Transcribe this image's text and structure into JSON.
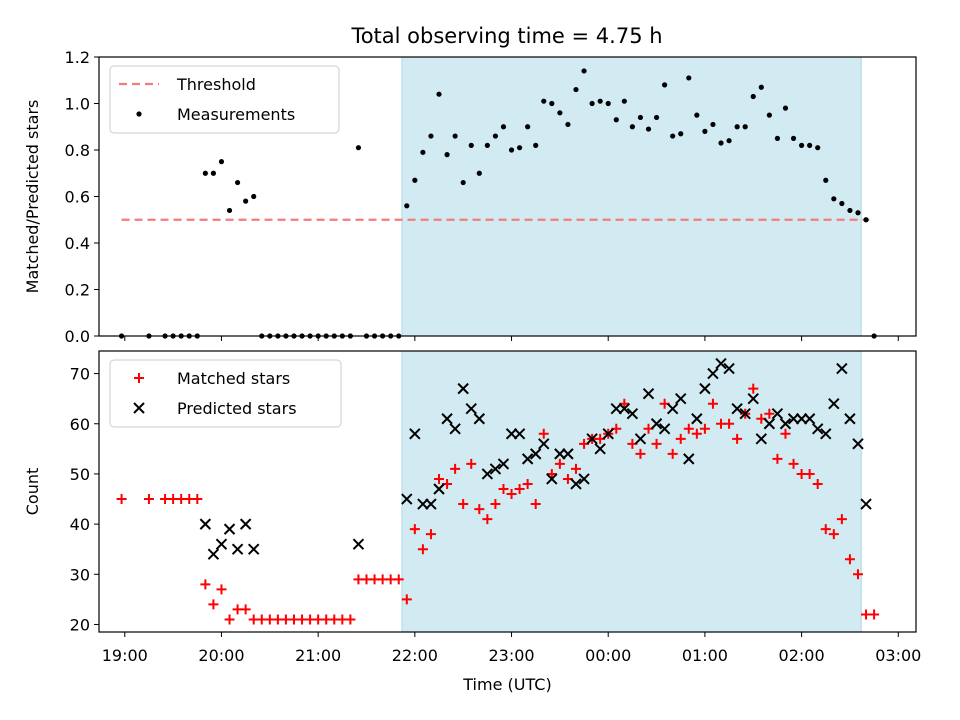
{
  "figure_title": "Total observing time = 4.75 h",
  "colors": {
    "threshold": "#f47c7c",
    "measurement": "#000000",
    "matched": "#ff0000",
    "predicted": "#000000",
    "shade": "#add8e6"
  },
  "chart_data": [
    {
      "type": "scatter",
      "panel": "top",
      "ylabel": "Matched/Predicted stars",
      "ylim": [
        0,
        1.2
      ],
      "yticks": [
        0.0,
        0.2,
        0.4,
        0.6,
        0.8,
        1.0,
        1.2
      ],
      "ytick_labels": [
        "0.0",
        "0.2",
        "0.4",
        "0.6",
        "0.8",
        "1.0",
        "1.2"
      ],
      "shade_range": [
        "21:52",
        "02:37"
      ],
      "legend": {
        "placement": "top-left",
        "entries": [
          "Threshold",
          "Measurements"
        ]
      },
      "series": [
        {
          "name": "Threshold",
          "kind": "dashed-line",
          "x": [
            "18:58",
            "02:42"
          ],
          "y": [
            0.5,
            0.5
          ]
        },
        {
          "name": "Measurements",
          "kind": "dots",
          "points": [
            [
              "18:58",
              0.0
            ],
            [
              "19:15",
              0.0
            ],
            [
              "19:25",
              0.0
            ],
            [
              "19:30",
              0.0
            ],
            [
              "19:35",
              0.0
            ],
            [
              "19:40",
              0.0
            ],
            [
              "19:45",
              0.0
            ],
            [
              "19:50",
              0.7
            ],
            [
              "19:55",
              0.7
            ],
            [
              "20:00",
              0.75
            ],
            [
              "20:05",
              0.54
            ],
            [
              "20:10",
              0.66
            ],
            [
              "20:15",
              0.58
            ],
            [
              "20:20",
              0.6
            ],
            [
              "20:25",
              0.0
            ],
            [
              "20:30",
              0.0
            ],
            [
              "20:35",
              0.0
            ],
            [
              "20:40",
              0.0
            ],
            [
              "20:45",
              0.0
            ],
            [
              "20:50",
              0.0
            ],
            [
              "20:55",
              0.0
            ],
            [
              "21:00",
              0.0
            ],
            [
              "21:05",
              0.0
            ],
            [
              "21:10",
              0.0
            ],
            [
              "21:15",
              0.0
            ],
            [
              "21:20",
              0.0
            ],
            [
              "21:25",
              0.81
            ],
            [
              "21:30",
              0.0
            ],
            [
              "21:35",
              0.0
            ],
            [
              "21:40",
              0.0
            ],
            [
              "21:45",
              0.0
            ],
            [
              "21:50",
              0.0
            ],
            [
              "21:55",
              0.56
            ],
            [
              "22:00",
              0.67
            ],
            [
              "22:05",
              0.79
            ],
            [
              "22:10",
              0.86
            ],
            [
              "22:15",
              1.04
            ],
            [
              "22:20",
              0.78
            ],
            [
              "22:25",
              0.86
            ],
            [
              "22:30",
              0.66
            ],
            [
              "22:35",
              0.82
            ],
            [
              "22:40",
              0.7
            ],
            [
              "22:45",
              0.82
            ],
            [
              "22:50",
              0.86
            ],
            [
              "22:55",
              0.9
            ],
            [
              "23:00",
              0.8
            ],
            [
              "23:05",
              0.81
            ],
            [
              "23:10",
              0.9
            ],
            [
              "23:15",
              0.82
            ],
            [
              "23:20",
              1.01
            ],
            [
              "23:25",
              1.0
            ],
            [
              "23:30",
              0.96
            ],
            [
              "23:35",
              0.91
            ],
            [
              "23:40",
              1.06
            ],
            [
              "23:45",
              1.14
            ],
            [
              "23:50",
              1.0
            ],
            [
              "23:55",
              1.01
            ],
            [
              "00:00",
              1.0
            ],
            [
              "00:05",
              0.93
            ],
            [
              "00:10",
              1.01
            ],
            [
              "00:15",
              0.9
            ],
            [
              "00:20",
              0.94
            ],
            [
              "00:25",
              0.89
            ],
            [
              "00:30",
              0.94
            ],
            [
              "00:35",
              1.08
            ],
            [
              "00:40",
              0.86
            ],
            [
              "00:45",
              0.87
            ],
            [
              "00:50",
              1.11
            ],
            [
              "00:55",
              0.95
            ],
            [
              "01:00",
              0.88
            ],
            [
              "01:05",
              0.91
            ],
            [
              "01:10",
              0.83
            ],
            [
              "01:15",
              0.84
            ],
            [
              "01:20",
              0.9
            ],
            [
              "01:25",
              0.9
            ],
            [
              "01:30",
              1.03
            ],
            [
              "01:35",
              1.07
            ],
            [
              "01:40",
              0.95
            ],
            [
              "01:45",
              0.85
            ],
            [
              "01:50",
              0.98
            ],
            [
              "01:55",
              0.85
            ],
            [
              "02:00",
              0.82
            ],
            [
              "02:05",
              0.82
            ],
            [
              "02:10",
              0.81
            ],
            [
              "02:15",
              0.67
            ],
            [
              "02:20",
              0.59
            ],
            [
              "02:25",
              0.57
            ],
            [
              "02:30",
              0.54
            ],
            [
              "02:35",
              0.53
            ],
            [
              "02:40",
              0.5
            ],
            [
              "02:45",
              0.0
            ]
          ]
        }
      ]
    },
    {
      "type": "scatter",
      "panel": "bottom",
      "xlabel": "Time (UTC)",
      "ylabel": "Count",
      "ylim": [
        18.5,
        74.5
      ],
      "yticks": [
        20,
        30,
        40,
        50,
        60,
        70
      ],
      "ytick_labels": [
        "20",
        "30",
        "40",
        "50",
        "60",
        "70"
      ],
      "xticks": [
        "19:00",
        "20:00",
        "21:00",
        "22:00",
        "23:00",
        "00:00",
        "01:00",
        "02:00",
        "03:00"
      ],
      "shade_range": [
        "21:52",
        "02:37"
      ],
      "legend": {
        "placement": "top-left",
        "entries": [
          "Matched stars",
          "Predicted stars"
        ]
      },
      "series": [
        {
          "name": "Matched stars",
          "kind": "plus",
          "points": [
            [
              "18:58",
              45
            ],
            [
              "19:15",
              45
            ],
            [
              "19:25",
              45
            ],
            [
              "19:30",
              45
            ],
            [
              "19:35",
              45
            ],
            [
              "19:40",
              45
            ],
            [
              "19:45",
              45
            ],
            [
              "19:50",
              28
            ],
            [
              "19:55",
              24
            ],
            [
              "20:00",
              27
            ],
            [
              "20:05",
              21
            ],
            [
              "20:10",
              23
            ],
            [
              "20:15",
              23
            ],
            [
              "20:20",
              21
            ],
            [
              "20:25",
              21
            ],
            [
              "20:30",
              21
            ],
            [
              "20:35",
              21
            ],
            [
              "20:40",
              21
            ],
            [
              "20:45",
              21
            ],
            [
              "20:50",
              21
            ],
            [
              "20:55",
              21
            ],
            [
              "21:00",
              21
            ],
            [
              "21:05",
              21
            ],
            [
              "21:10",
              21
            ],
            [
              "21:15",
              21
            ],
            [
              "21:20",
              21
            ],
            [
              "21:25",
              29
            ],
            [
              "21:30",
              29
            ],
            [
              "21:35",
              29
            ],
            [
              "21:40",
              29
            ],
            [
              "21:45",
              29
            ],
            [
              "21:50",
              29
            ],
            [
              "21:55",
              25
            ],
            [
              "22:00",
              39
            ],
            [
              "22:05",
              35
            ],
            [
              "22:10",
              38
            ],
            [
              "22:15",
              49
            ],
            [
              "22:20",
              48
            ],
            [
              "22:25",
              51
            ],
            [
              "22:30",
              44
            ],
            [
              "22:35",
              52
            ],
            [
              "22:40",
              43
            ],
            [
              "22:45",
              41
            ],
            [
              "22:50",
              44
            ],
            [
              "22:55",
              47
            ],
            [
              "23:00",
              46
            ],
            [
              "23:05",
              47
            ],
            [
              "23:10",
              48
            ],
            [
              "23:15",
              44
            ],
            [
              "23:20",
              58
            ],
            [
              "23:25",
              50
            ],
            [
              "23:30",
              52
            ],
            [
              "23:35",
              49
            ],
            [
              "23:40",
              51
            ],
            [
              "23:45",
              56
            ],
            [
              "23:50",
              57
            ],
            [
              "23:55",
              57
            ],
            [
              "00:00",
              58
            ],
            [
              "00:05",
              59
            ],
            [
              "00:10",
              64
            ],
            [
              "00:15",
              56
            ],
            [
              "00:20",
              54
            ],
            [
              "00:25",
              59
            ],
            [
              "00:30",
              56
            ],
            [
              "00:35",
              64
            ],
            [
              "00:40",
              54
            ],
            [
              "00:45",
              57
            ],
            [
              "00:50",
              59
            ],
            [
              "00:55",
              58
            ],
            [
              "01:00",
              59
            ],
            [
              "01:05",
              64
            ],
            [
              "01:10",
              60
            ],
            [
              "01:15",
              60
            ],
            [
              "01:20",
              57
            ],
            [
              "01:25",
              62
            ],
            [
              "01:30",
              67
            ],
            [
              "01:35",
              61
            ],
            [
              "01:40",
              62
            ],
            [
              "01:45",
              53
            ],
            [
              "01:50",
              58
            ],
            [
              "01:55",
              52
            ],
            [
              "02:00",
              50
            ],
            [
              "02:05",
              50
            ],
            [
              "02:10",
              48
            ],
            [
              "02:15",
              39
            ],
            [
              "02:20",
              38
            ],
            [
              "02:25",
              41
            ],
            [
              "02:30",
              33
            ],
            [
              "02:35",
              30
            ],
            [
              "02:40",
              22
            ],
            [
              "02:45",
              22
            ]
          ]
        },
        {
          "name": "Predicted stars",
          "kind": "cross",
          "points": [
            [
              "19:50",
              40
            ],
            [
              "19:55",
              34
            ],
            [
              "20:00",
              36
            ],
            [
              "20:05",
              39
            ],
            [
              "20:10",
              35
            ],
            [
              "20:15",
              40
            ],
            [
              "20:20",
              35
            ],
            [
              "21:25",
              36
            ],
            [
              "21:55",
              45
            ],
            [
              "22:00",
              58
            ],
            [
              "22:05",
              44
            ],
            [
              "22:10",
              44
            ],
            [
              "22:15",
              47
            ],
            [
              "22:20",
              61
            ],
            [
              "22:25",
              59
            ],
            [
              "22:30",
              67
            ],
            [
              "22:35",
              63
            ],
            [
              "22:40",
              61
            ],
            [
              "22:45",
              50
            ],
            [
              "22:50",
              51
            ],
            [
              "22:55",
              52
            ],
            [
              "23:00",
              58
            ],
            [
              "23:05",
              58
            ],
            [
              "23:10",
              53
            ],
            [
              "23:15",
              54
            ],
            [
              "23:20",
              56
            ],
            [
              "23:25",
              49
            ],
            [
              "23:30",
              54
            ],
            [
              "23:35",
              54
            ],
            [
              "23:40",
              48
            ],
            [
              "23:45",
              49
            ],
            [
              "23:50",
              57
            ],
            [
              "23:55",
              55
            ],
            [
              "00:00",
              58
            ],
            [
              "00:05",
              63
            ],
            [
              "00:10",
              63
            ],
            [
              "00:15",
              62
            ],
            [
              "00:20",
              57
            ],
            [
              "00:25",
              66
            ],
            [
              "00:30",
              60
            ],
            [
              "00:35",
              59
            ],
            [
              "00:40",
              63
            ],
            [
              "00:45",
              65
            ],
            [
              "00:50",
              53
            ],
            [
              "00:55",
              61
            ],
            [
              "01:00",
              67
            ],
            [
              "01:05",
              70
            ],
            [
              "01:10",
              72
            ],
            [
              "01:15",
              71
            ],
            [
              "01:20",
              63
            ],
            [
              "01:25",
              62
            ],
            [
              "01:30",
              65
            ],
            [
              "01:35",
              57
            ],
            [
              "01:40",
              60
            ],
            [
              "01:45",
              62
            ],
            [
              "01:50",
              60
            ],
            [
              "01:55",
              61
            ],
            [
              "02:00",
              61
            ],
            [
              "02:05",
              61
            ],
            [
              "02:10",
              59
            ],
            [
              "02:15",
              58
            ],
            [
              "02:20",
              64
            ],
            [
              "02:25",
              71
            ],
            [
              "02:30",
              61
            ],
            [
              "02:35",
              56
            ],
            [
              "02:40",
              44
            ]
          ]
        }
      ]
    }
  ]
}
